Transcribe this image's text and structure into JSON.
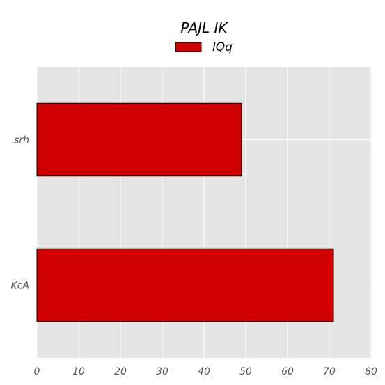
{
  "chart_data": {
    "type": "bar",
    "orientation": "horizontal",
    "title": "PAJL IK",
    "categories": [
      "srh",
      "KcA"
    ],
    "series": [
      {
        "name": "lQq",
        "values": [
          49,
          71
        ]
      }
    ],
    "xlabel": "",
    "ylabel": "",
    "xlim": [
      0,
      80
    ],
    "x_ticks": [
      "0",
      "10",
      "20",
      "30",
      "40",
      "50",
      "60",
      "70",
      "80"
    ],
    "grid": true,
    "legend_position": "top-center",
    "colors": {
      "bar_fill": "#d10000",
      "bar_edge": "#000000",
      "plot_background": "#e5e5e5",
      "grid": "#ffffff",
      "tick_label": "#555555"
    }
  }
}
